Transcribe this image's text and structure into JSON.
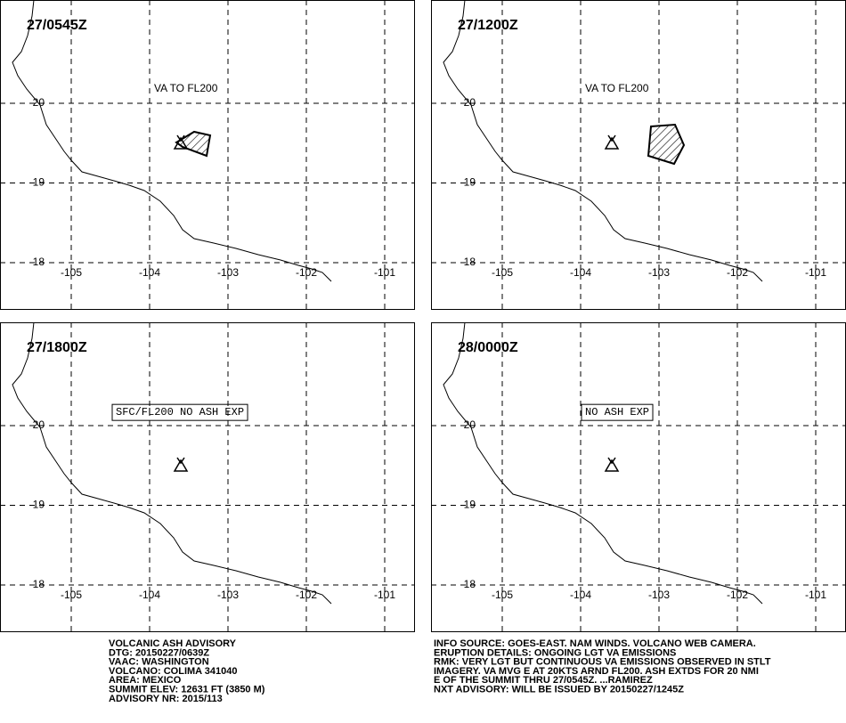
{
  "panels": [
    {
      "time": "27/0545Z",
      "label": "VA TO FL200"
    },
    {
      "time": "27/1200Z",
      "label": "VA TO FL200"
    },
    {
      "time": "27/1800Z",
      "label": "SFC/FL200 NO ASH EXP"
    },
    {
      "time": "28/0000Z",
      "label": "NO ASH EXP"
    }
  ],
  "lon_labels": [
    "-105",
    "-104",
    "-103",
    "-102",
    "-101"
  ],
  "lat_labels": [
    "20",
    "19",
    "18"
  ],
  "footer_left": [
    "VOLCANIC ASH ADVISORY",
    "DTG: 20150227/0639Z",
    "VAAC: WASHINGTON",
    "VOLCANO: COLIMA 341040",
    "AREA: MEXICO",
    "SUMMIT ELEV: 12631 FT (3850 M)",
    "ADVISORY NR: 2015/113"
  ],
  "footer_right": [
    "INFO SOURCE: GOES-EAST. NAM WINDS. VOLCANO WEB CAMERA.",
    "ERUPTION DETAILS: ONGOING LGT VA EMISSIONS",
    "RMK: VERY LGT BUT CONTINUOUS VA EMISSIONS OBSERVED IN STLT",
    "IMAGERY. VA MVG E AT 20KTS ARND FL200. ASH EXTDS FOR 20 NMI",
    "E OF THE SUMMIT THRU 27/0545Z. ...RAMIREZ",
    "NXT ADVISORY: WILL BE ISSUED BY 20150227/1245Z"
  ]
}
